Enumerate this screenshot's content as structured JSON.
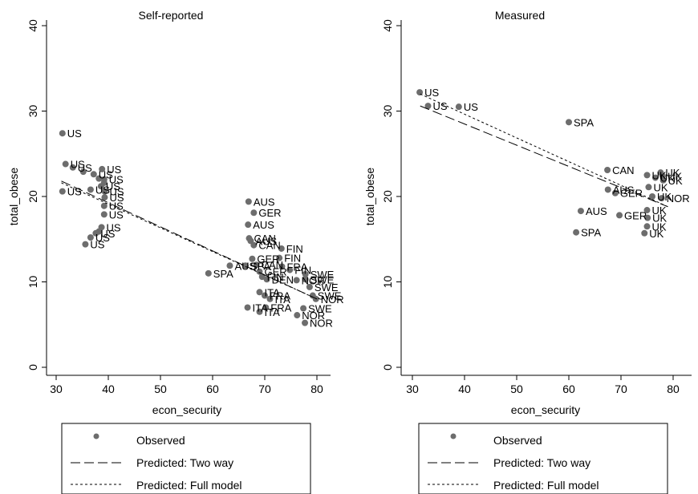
{
  "chart_data": [
    {
      "type": "scatter",
      "title": "Self-reported",
      "xlabel": "econ_security",
      "ylabel": "total_obese",
      "xlim": [
        29,
        82
      ],
      "ylim": [
        -1,
        40
      ],
      "xticks": [
        30,
        40,
        50,
        60,
        70,
        80
      ],
      "yticks": [
        0,
        10,
        20,
        30,
        40
      ],
      "legend": {
        "placement": "bottom",
        "entries": [
          "Observed",
          "Predicted: Two way",
          "Predicted: Full model"
        ]
      },
      "points": [
        {
          "x": 31.2,
          "y": 27.4,
          "label": "US"
        },
        {
          "x": 31.8,
          "y": 23.8,
          "label": "US"
        },
        {
          "x": 33.2,
          "y": 23.4,
          "label": "US"
        },
        {
          "x": 35.2,
          "y": 22.9,
          "label": ""
        },
        {
          "x": 37.2,
          "y": 22.6,
          "label": "US"
        },
        {
          "x": 38.8,
          "y": 23.2,
          "label": "US"
        },
        {
          "x": 38.2,
          "y": 22.1,
          "label": ""
        },
        {
          "x": 39.2,
          "y": 22.0,
          "label": "US"
        },
        {
          "x": 39.2,
          "y": 21.6,
          "label": ""
        },
        {
          "x": 38.6,
          "y": 21.2,
          "label": "US"
        },
        {
          "x": 31.2,
          "y": 20.6,
          "label": "US"
        },
        {
          "x": 36.6,
          "y": 20.8,
          "label": "US"
        },
        {
          "x": 39.3,
          "y": 20.6,
          "label": "US"
        },
        {
          "x": 39.3,
          "y": 19.9,
          "label": "US"
        },
        {
          "x": 39.2,
          "y": 18.9,
          "label": "US"
        },
        {
          "x": 39.2,
          "y": 17.9,
          "label": "US"
        },
        {
          "x": 38.7,
          "y": 16.4,
          "label": "US"
        },
        {
          "x": 38.2,
          "y": 15.9,
          "label": ""
        },
        {
          "x": 37.6,
          "y": 15.7,
          "label": "US"
        },
        {
          "x": 36.6,
          "y": 15.2,
          "label": "US"
        },
        {
          "x": 35.6,
          "y": 14.4,
          "label": "US"
        },
        {
          "x": 66.9,
          "y": 19.4,
          "label": "AUS"
        },
        {
          "x": 67.9,
          "y": 18.1,
          "label": "GER"
        },
        {
          "x": 66.8,
          "y": 16.7,
          "label": "AUS"
        },
        {
          "x": 67.0,
          "y": 15.1,
          "label": "CAN"
        },
        {
          "x": 67.3,
          "y": 14.8,
          "label": "AUS"
        },
        {
          "x": 67.9,
          "y": 14.3,
          "label": "CAN"
        },
        {
          "x": 73.2,
          "y": 13.9,
          "label": "FIN"
        },
        {
          "x": 72.8,
          "y": 12.8,
          "label": "FIN"
        },
        {
          "x": 67.6,
          "y": 12.7,
          "label": "GER"
        },
        {
          "x": 63.3,
          "y": 11.9,
          "label": "AUS"
        },
        {
          "x": 66.3,
          "y": 11.9,
          "label": "SPA"
        },
        {
          "x": 68.4,
          "y": 12.0,
          "label": "CAN"
        },
        {
          "x": 73.3,
          "y": 11.8,
          "label": "FRA"
        },
        {
          "x": 74.8,
          "y": 11.4,
          "label": "FIN"
        },
        {
          "x": 59.2,
          "y": 11.0,
          "label": "SPA"
        },
        {
          "x": 69.0,
          "y": 11.2,
          "label": "GER"
        },
        {
          "x": 69.5,
          "y": 10.6,
          "label": "FIN"
        },
        {
          "x": 70.4,
          "y": 10.3,
          "label": "DEN"
        },
        {
          "x": 77.8,
          "y": 10.9,
          "label": "SWE"
        },
        {
          "x": 76.1,
          "y": 10.2,
          "label": "NOR"
        },
        {
          "x": 77.8,
          "y": 10.3,
          "label": "SWE"
        },
        {
          "x": 78.6,
          "y": 9.4,
          "label": "SWE"
        },
        {
          "x": 69.0,
          "y": 8.8,
          "label": "ITA"
        },
        {
          "x": 70.0,
          "y": 8.4,
          "label": "FRA"
        },
        {
          "x": 71.0,
          "y": 8.0,
          "label": "ITA"
        },
        {
          "x": 79.2,
          "y": 8.4,
          "label": "SWE"
        },
        {
          "x": 79.8,
          "y": 8.0,
          "label": "NOR"
        },
        {
          "x": 66.7,
          "y": 7.0,
          "label": "ITA"
        },
        {
          "x": 69.0,
          "y": 6.5,
          "label": "ITA"
        },
        {
          "x": 70.2,
          "y": 7.0,
          "label": "FRA"
        },
        {
          "x": 77.4,
          "y": 6.9,
          "label": "SWE"
        },
        {
          "x": 76.2,
          "y": 6.1,
          "label": "NOR"
        },
        {
          "x": 77.7,
          "y": 5.2,
          "label": "NOR"
        }
      ],
      "series": [
        {
          "name": "Predicted: Two way",
          "style": "dash",
          "x": [
            31,
            80
          ],
          "y": [
            21.8,
            8.0
          ]
        },
        {
          "name": "Predicted: Full model",
          "style": "dot",
          "x": [
            31,
            80
          ],
          "y": [
            21.6,
            8.0
          ]
        }
      ]
    },
    {
      "type": "scatter",
      "title": "Measured",
      "xlabel": "econ_security",
      "ylabel": "total_obese",
      "xlim": [
        29,
        83
      ],
      "ylim": [
        -1,
        40
      ],
      "xticks": [
        30,
        40,
        50,
        60,
        70,
        80
      ],
      "yticks": [
        0,
        10,
        20,
        30,
        40
      ],
      "legend": {
        "placement": "bottom",
        "entries": [
          "Observed",
          "Predicted: Two way",
          "Predicted: Full model"
        ]
      },
      "points": [
        {
          "x": 31.4,
          "y": 32.2,
          "label": "US"
        },
        {
          "x": 33.0,
          "y": 30.6,
          "label": "US"
        },
        {
          "x": 38.9,
          "y": 30.5,
          "label": "US"
        },
        {
          "x": 60.0,
          "y": 28.7,
          "label": "SPA"
        },
        {
          "x": 67.4,
          "y": 23.1,
          "label": "CAN"
        },
        {
          "x": 67.5,
          "y": 20.8,
          "label": "AUS"
        },
        {
          "x": 68.9,
          "y": 20.4,
          "label": "GER"
        },
        {
          "x": 62.3,
          "y": 18.3,
          "label": "AUS"
        },
        {
          "x": 69.7,
          "y": 17.8,
          "label": "GER"
        },
        {
          "x": 61.4,
          "y": 15.8,
          "label": "SPA"
        },
        {
          "x": 75.0,
          "y": 22.5,
          "label": "UK"
        },
        {
          "x": 76.6,
          "y": 22.2,
          "label": "UK"
        },
        {
          "x": 77.6,
          "y": 22.8,
          "label": "UK"
        },
        {
          "x": 78.0,
          "y": 22.4,
          "label": "UK"
        },
        {
          "x": 78.1,
          "y": 21.9,
          "label": "UK"
        },
        {
          "x": 75.3,
          "y": 21.1,
          "label": "UK"
        },
        {
          "x": 76.0,
          "y": 20.0,
          "label": "UK"
        },
        {
          "x": 77.8,
          "y": 19.8,
          "label": "NOR"
        },
        {
          "x": 75.0,
          "y": 18.4,
          "label": "UK"
        },
        {
          "x": 75.1,
          "y": 17.5,
          "label": "UK"
        },
        {
          "x": 75.0,
          "y": 16.5,
          "label": "UK"
        },
        {
          "x": 74.5,
          "y": 15.7,
          "label": "UK"
        }
      ],
      "series": [
        {
          "name": "Predicted: Two way",
          "style": "dash",
          "x": [
            31.5,
            79
          ],
          "y": [
            30.6,
            18.8
          ]
        },
        {
          "name": "Predicted: Full model",
          "style": "dot",
          "x": [
            31.5,
            79
          ],
          "y": [
            32.0,
            18.8
          ]
        }
      ]
    }
  ]
}
